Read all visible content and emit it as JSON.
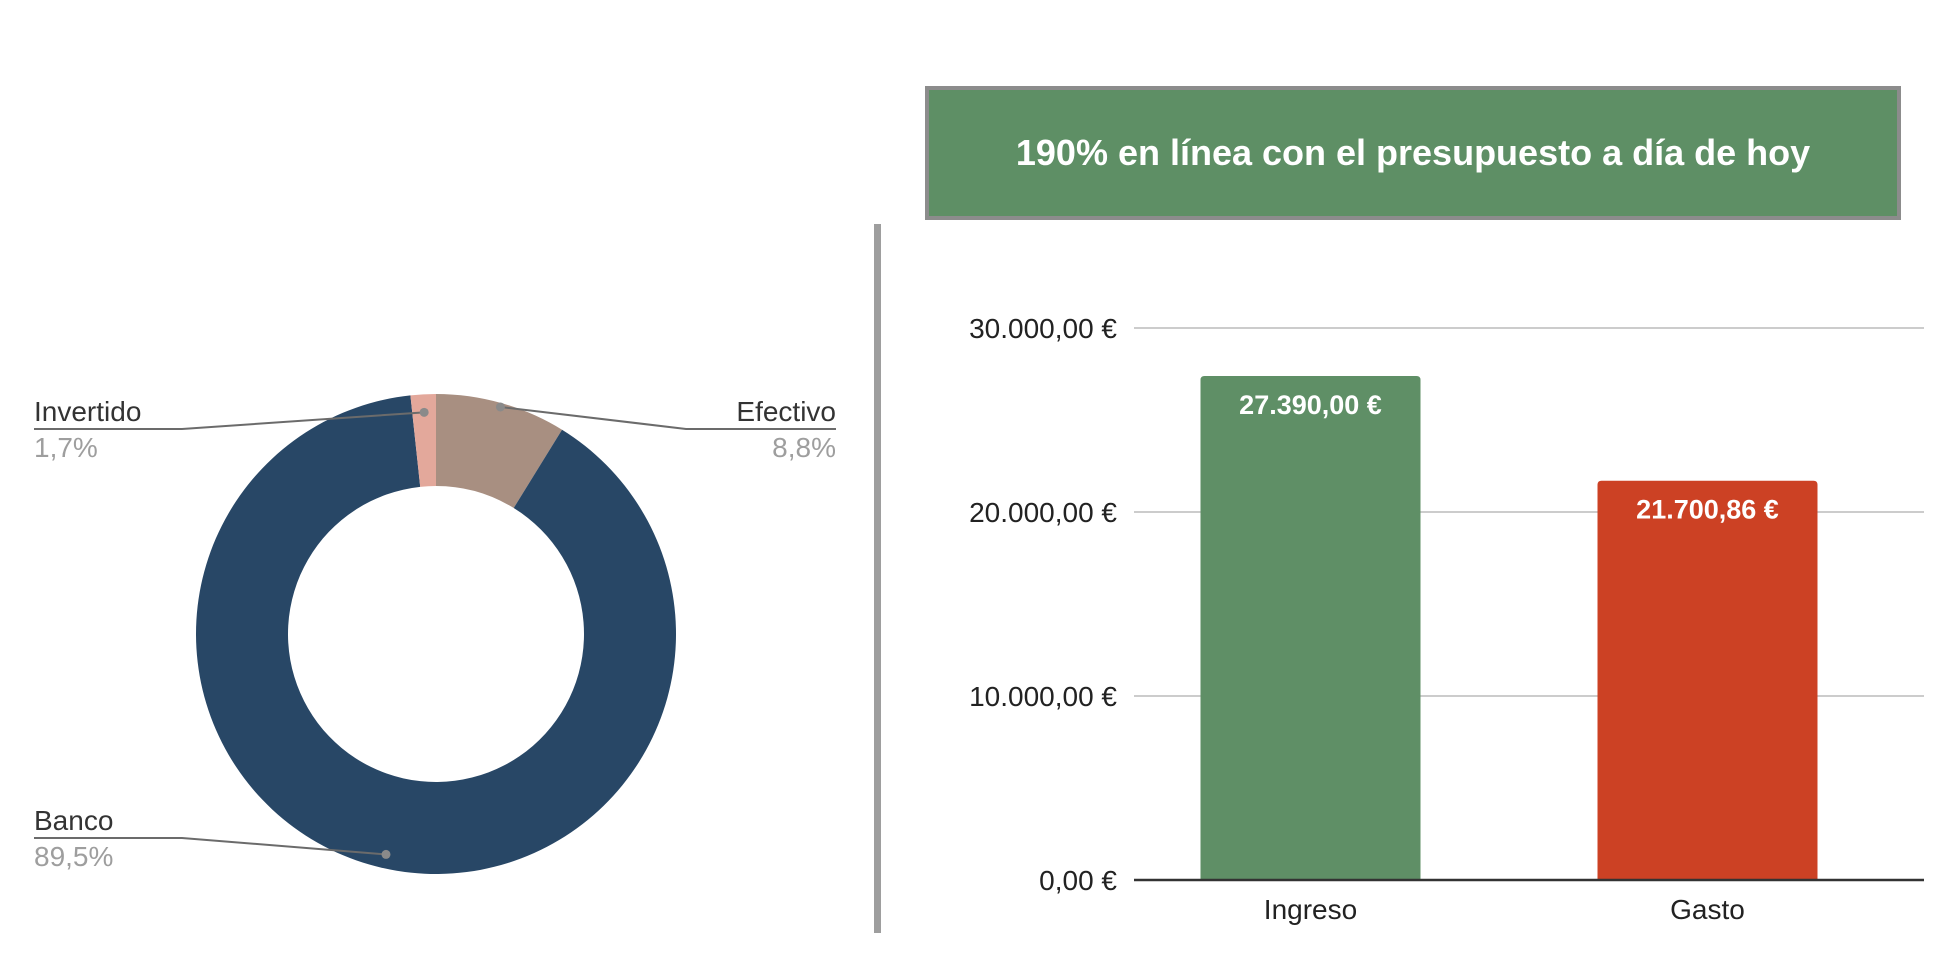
{
  "banner": {
    "text": "190% en línea con el presupuesto a día de hoy",
    "bg_color": "#5e8f65",
    "border_color": "#8c8c8c"
  },
  "chart_data": [
    {
      "type": "pie",
      "variant": "donut",
      "slices": [
        {
          "label": "Efectivo",
          "value": 8.8,
          "display": "8,8%",
          "color": "#a88f81"
        },
        {
          "label": "Banco",
          "value": 89.5,
          "display": "89,5%",
          "color": "#284766"
        },
        {
          "label": "Invertido",
          "value": 1.7,
          "display": "1,7%",
          "color": "#e3a89b"
        }
      ],
      "legend": "callout-labels"
    },
    {
      "type": "bar",
      "categories": [
        "Ingreso",
        "Gasto"
      ],
      "values": [
        27390.0,
        21700.86
      ],
      "data_labels": [
        "27.390,00 €",
        "21.700,86 €"
      ],
      "colors": [
        "#5f8f66",
        "#cc4124"
      ],
      "ylim": [
        0,
        30000
      ],
      "yticks": [
        0,
        10000,
        20000,
        30000
      ],
      "ytick_labels": [
        "0,00 €",
        "10.000,00 €",
        "20.000,00 €",
        "30.000,00 €"
      ],
      "grid": true
    }
  ]
}
